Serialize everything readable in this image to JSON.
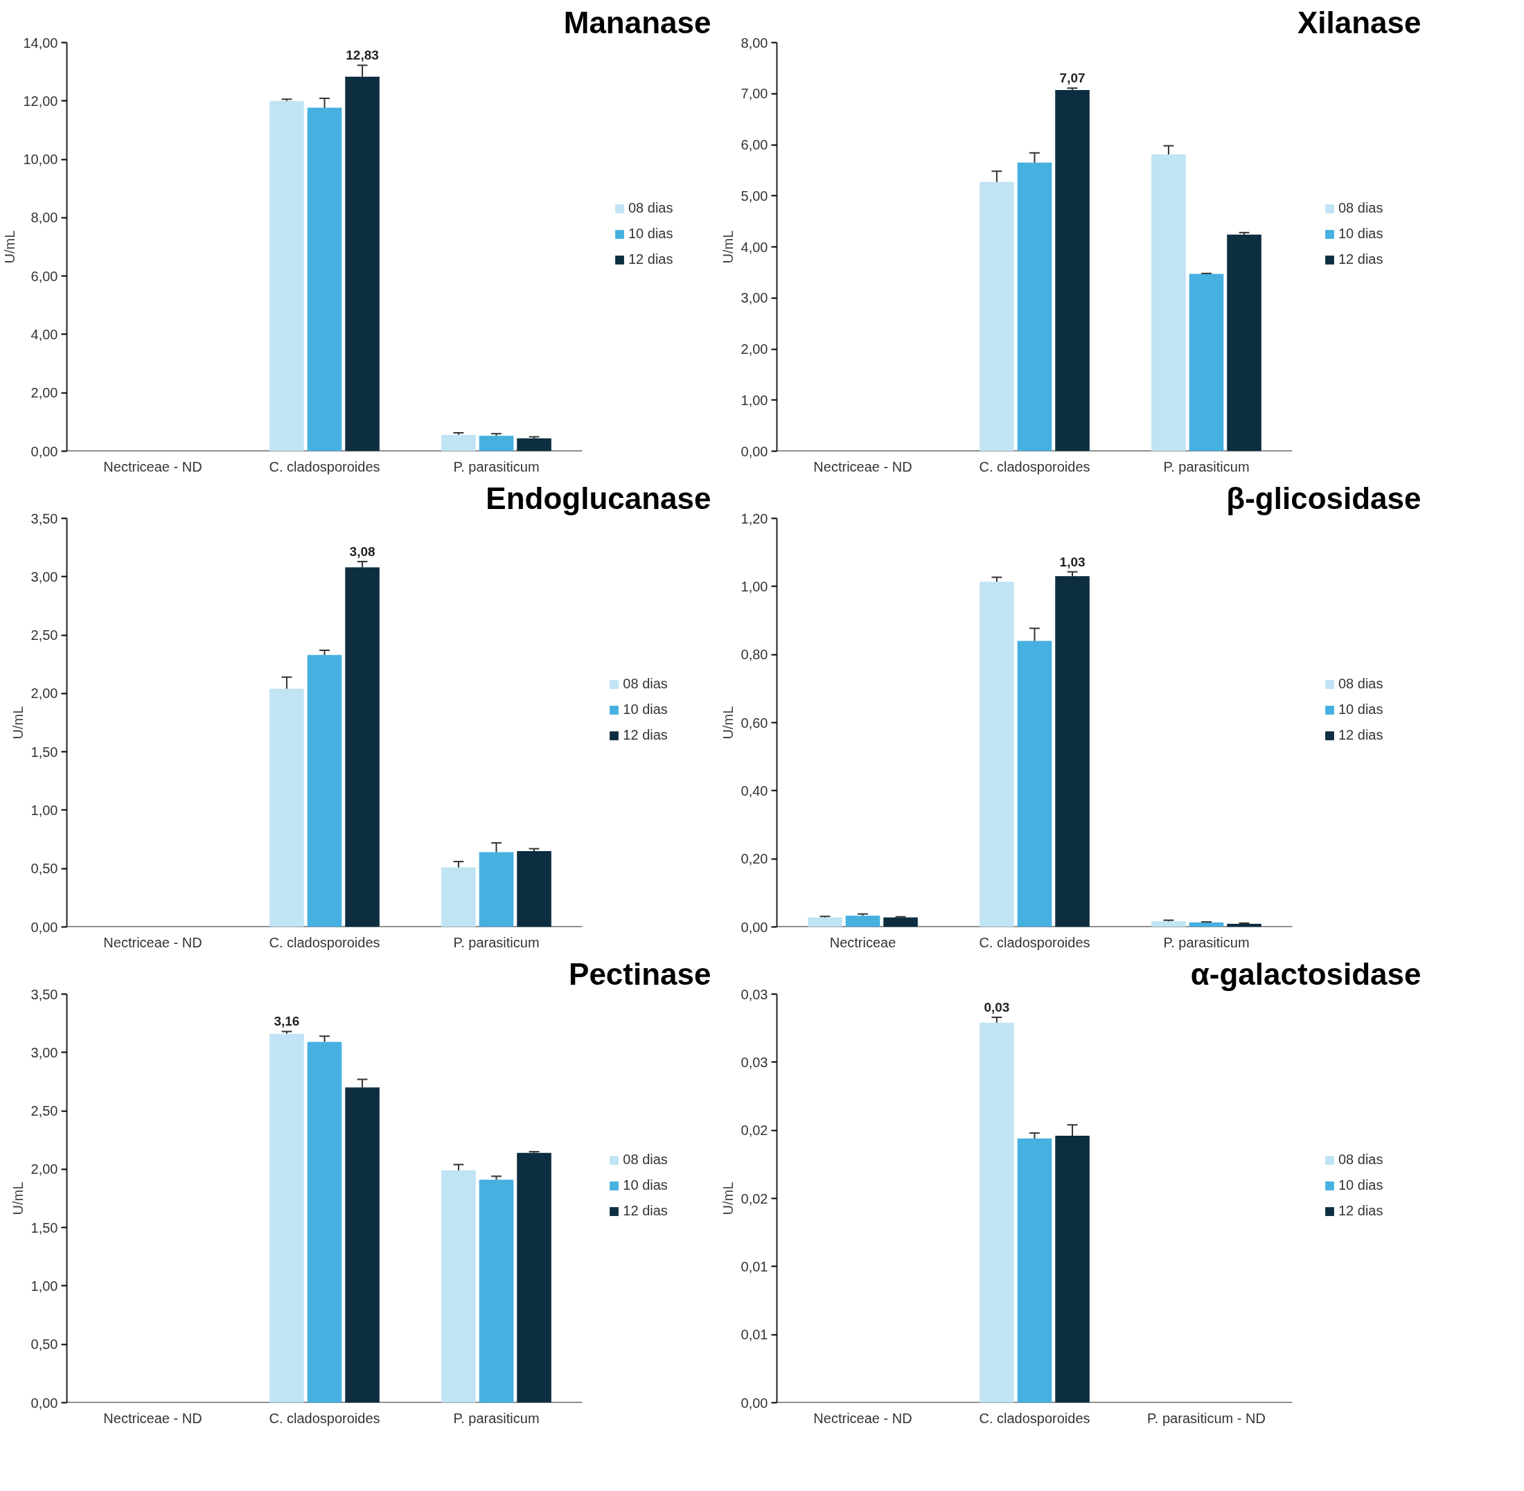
{
  "chart_data": [
    {
      "type": "bar",
      "title": "Mananase",
      "ylabel": "U/mL",
      "categories": [
        "Nectriceae - ND",
        "C. cladosporoides",
        "P. parasiticum"
      ],
      "legend": "right",
      "ylim": [
        0,
        14
      ],
      "yticks": [
        {
          "value": 0,
          "label": "0,00"
        },
        {
          "value": 2,
          "label": "2,00"
        },
        {
          "value": 4,
          "label": "4,00"
        },
        {
          "value": 6,
          "label": "6,00"
        },
        {
          "value": 8,
          "label": "8,00"
        },
        {
          "value": 10,
          "label": "10,00"
        },
        {
          "value": 12,
          "label": "12,00"
        },
        {
          "value": 14,
          "label": "14,00"
        }
      ],
      "series": [
        {
          "name": "08 dias",
          "color": "#c0e4f4",
          "values": [
            null,
            12.0,
            0.56
          ],
          "errors": [
            null,
            [
              12.0,
              12.06
            ],
            [
              0.56,
              0.63
            ]
          ],
          "value_labels": [
            null,
            null,
            null
          ]
        },
        {
          "name": "10 dias",
          "color": "#46b0e0",
          "values": [
            null,
            11.77,
            0.53
          ],
          "errors": [
            null,
            [
              11.77,
              12.09
            ],
            [
              0.53,
              0.6
            ]
          ],
          "value_labels": [
            null,
            null,
            null
          ]
        },
        {
          "name": "12 dias",
          "color": "#0d2d40",
          "values": [
            null,
            12.83,
            0.44
          ],
          "errors": [
            null,
            [
              12.83,
              13.22
            ],
            [
              0.44,
              0.49
            ]
          ],
          "value_labels": [
            null,
            "12,83",
            null
          ]
        }
      ]
    },
    {
      "type": "bar",
      "title": "Xilanase",
      "ylabel": "U/mL",
      "categories": [
        "Nectriceae - ND",
        "C. cladosporoides",
        "P. parasiticum"
      ],
      "legend": "right",
      "ylim": [
        0,
        8
      ],
      "yticks": [
        {
          "value": 0,
          "label": "0,00"
        },
        {
          "value": 1,
          "label": "1,00"
        },
        {
          "value": 2,
          "label": "2,00"
        },
        {
          "value": 3,
          "label": "3,00"
        },
        {
          "value": 4,
          "label": "4,00"
        },
        {
          "value": 5,
          "label": "5,00"
        },
        {
          "value": 6,
          "label": "6,00"
        },
        {
          "value": 7,
          "label": "7,00"
        },
        {
          "value": 8,
          "label": "8,00"
        }
      ],
      "series": [
        {
          "name": "08 dias",
          "color": "#c0e4f4",
          "values": [
            null,
            5.27,
            5.81
          ],
          "errors": [
            null,
            [
              5.27,
              5.48
            ],
            [
              5.81,
              5.98
            ]
          ],
          "value_labels": [
            null,
            null,
            null
          ]
        },
        {
          "name": "10 dias",
          "color": "#46b0e0",
          "values": [
            null,
            5.65,
            3.47
          ],
          "errors": [
            null,
            [
              5.65,
              5.84
            ],
            [
              3.47,
              3.48
            ]
          ],
          "value_labels": [
            null,
            null,
            null
          ]
        },
        {
          "name": "12 dias",
          "color": "#0d2d40",
          "values": [
            null,
            7.07,
            4.24
          ],
          "errors": [
            null,
            [
              7.07,
              7.11
            ],
            [
              4.24,
              4.28
            ]
          ],
          "value_labels": [
            null,
            "7,07",
            null
          ]
        }
      ]
    },
    {
      "type": "bar",
      "title": "Endoglucanase",
      "ylabel": "U/mL",
      "categories": [
        "Nectriceae - ND",
        "C. cladosporoides",
        "P. parasiticum"
      ],
      "legend": "right",
      "ylim": [
        0,
        3.5
      ],
      "yticks": [
        {
          "value": 0,
          "label": "0,00"
        },
        {
          "value": 0.5,
          "label": "0,50"
        },
        {
          "value": 1,
          "label": "1,00"
        },
        {
          "value": 1.5,
          "label": "1,50"
        },
        {
          "value": 2,
          "label": "2,00"
        },
        {
          "value": 2.5,
          "label": "2,50"
        },
        {
          "value": 3,
          "label": "3,00"
        },
        {
          "value": 3.5,
          "label": "3,50"
        }
      ],
      "series": [
        {
          "name": "08 dias",
          "color": "#c0e4f4",
          "values": [
            null,
            2.04,
            0.51
          ],
          "errors": [
            null,
            [
              2.04,
              2.14
            ],
            [
              0.51,
              0.56
            ]
          ],
          "value_labels": [
            null,
            null,
            null
          ]
        },
        {
          "name": "10 dias",
          "color": "#46b0e0",
          "values": [
            null,
            2.33,
            0.64
          ],
          "errors": [
            null,
            [
              2.33,
              2.37
            ],
            [
              0.64,
              0.72
            ]
          ],
          "value_labels": [
            null,
            null,
            null
          ]
        },
        {
          "name": "12 dias",
          "color": "#0d2d40",
          "values": [
            null,
            3.08,
            0.65
          ],
          "errors": [
            null,
            [
              3.08,
              3.13
            ],
            [
              0.65,
              0.67
            ]
          ],
          "value_labels": [
            null,
            "3,08",
            null
          ]
        }
      ]
    },
    {
      "type": "bar",
      "title": "β-glicosidase",
      "ylabel": "U/mL",
      "categories": [
        "Nectriceae",
        "C. cladosporoides",
        "P. parasiticum"
      ],
      "legend": "right",
      "ylim": [
        0,
        1.2
      ],
      "yticks": [
        {
          "value": 0,
          "label": "0,00"
        },
        {
          "value": 0.2,
          "label": "0,20"
        },
        {
          "value": 0.4,
          "label": "0,40"
        },
        {
          "value": 0.6,
          "label": "0,60"
        },
        {
          "value": 0.8,
          "label": "0,80"
        },
        {
          "value": 1.0,
          "label": "1,00"
        },
        {
          "value": 1.2,
          "label": "1,20"
        }
      ],
      "series": [
        {
          "name": "08 dias",
          "color": "#c0e4f4",
          "values": [
            0.028,
            1.014,
            0.017
          ],
          "errors": [
            [
              0.028,
              0.031
            ],
            [
              1.014,
              1.027
            ],
            [
              0.017,
              0.02
            ]
          ],
          "value_labels": [
            null,
            null,
            null
          ]
        },
        {
          "name": "10 dias",
          "color": "#46b0e0",
          "values": [
            0.033,
            0.84,
            0.013
          ],
          "errors": [
            [
              0.033,
              0.038
            ],
            [
              0.84,
              0.877
            ],
            [
              0.013,
              0.015
            ]
          ],
          "value_labels": [
            null,
            null,
            null
          ]
        },
        {
          "name": "12 dias",
          "color": "#0d2d40",
          "values": [
            0.028,
            1.03,
            0.009
          ],
          "errors": [
            [
              0.028,
              0.03
            ],
            [
              1.03,
              1.043
            ],
            [
              0.009,
              0.011
            ]
          ],
          "value_labels": [
            null,
            "1,03",
            null
          ]
        }
      ]
    },
    {
      "type": "bar",
      "title": "Pectinase",
      "ylabel": "U/mL",
      "categories": [
        "Nectriceae - ND",
        "C. cladosporoides",
        "P. parasiticum"
      ],
      "legend": "right",
      "ylim": [
        0,
        3.5
      ],
      "yticks": [
        {
          "value": 0,
          "label": "0,00"
        },
        {
          "value": 0.5,
          "label": "0,50"
        },
        {
          "value": 1,
          "label": "1,00"
        },
        {
          "value": 1.5,
          "label": "1,50"
        },
        {
          "value": 2,
          "label": "2,00"
        },
        {
          "value": 2.5,
          "label": "2,50"
        },
        {
          "value": 3,
          "label": "3,00"
        },
        {
          "value": 3.5,
          "label": "3,50"
        }
      ],
      "series": [
        {
          "name": "08 dias",
          "color": "#c0e4f4",
          "values": [
            null,
            3.16,
            1.99
          ],
          "errors": [
            null,
            [
              3.16,
              3.18
            ],
            [
              1.99,
              2.04
            ]
          ],
          "value_labels": [
            null,
            "3,16",
            null
          ]
        },
        {
          "name": "10 dias",
          "color": "#46b0e0",
          "values": [
            null,
            3.09,
            1.91
          ],
          "errors": [
            null,
            [
              3.09,
              3.14
            ],
            [
              1.91,
              1.94
            ]
          ],
          "value_labels": [
            null,
            null,
            null
          ]
        },
        {
          "name": "12 dias",
          "color": "#0d2d40",
          "values": [
            null,
            2.7,
            2.14
          ],
          "errors": [
            null,
            [
              2.7,
              2.77
            ],
            [
              2.14,
              2.15
            ]
          ],
          "value_labels": [
            null,
            null,
            null
          ]
        }
      ]
    },
    {
      "type": "bar",
      "title": "α-galactosidase",
      "ylabel": "U/mL",
      "categories": [
        "Nectriceae - ND",
        "C. cladosporoides",
        "P. parasiticum - ND"
      ],
      "legend": "right",
      "ylim": [
        0,
        0.03
      ],
      "yticks": [
        {
          "value": 0,
          "label": "0,00"
        },
        {
          "value": 0.005,
          "label": "0,01"
        },
        {
          "value": 0.01,
          "label": "0,01"
        },
        {
          "value": 0.015,
          "label": "0,02"
        },
        {
          "value": 0.02,
          "label": "0,02"
        },
        {
          "value": 0.025,
          "label": "0,03"
        },
        {
          "value": 0.03,
          "label": "0,03"
        }
      ],
      "series": [
        {
          "name": "08 dias",
          "color": "#c0e4f4",
          "values": [
            null,
            0.0279,
            null
          ],
          "errors": [
            null,
            [
              0.0279,
              0.0283
            ],
            null
          ],
          "value_labels": [
            null,
            "0,03",
            null
          ]
        },
        {
          "name": "10 dias",
          "color": "#46b0e0",
          "values": [
            null,
            0.0194,
            null
          ],
          "errors": [
            null,
            [
              0.0194,
              0.0198
            ],
            null
          ],
          "value_labels": [
            null,
            null,
            null
          ]
        },
        {
          "name": "12 dias",
          "color": "#0d2d40",
          "values": [
            null,
            0.0196,
            null
          ],
          "errors": [
            null,
            [
              0.0196,
              0.0204
            ],
            null
          ],
          "value_labels": [
            null,
            null,
            null
          ]
        }
      ]
    }
  ]
}
